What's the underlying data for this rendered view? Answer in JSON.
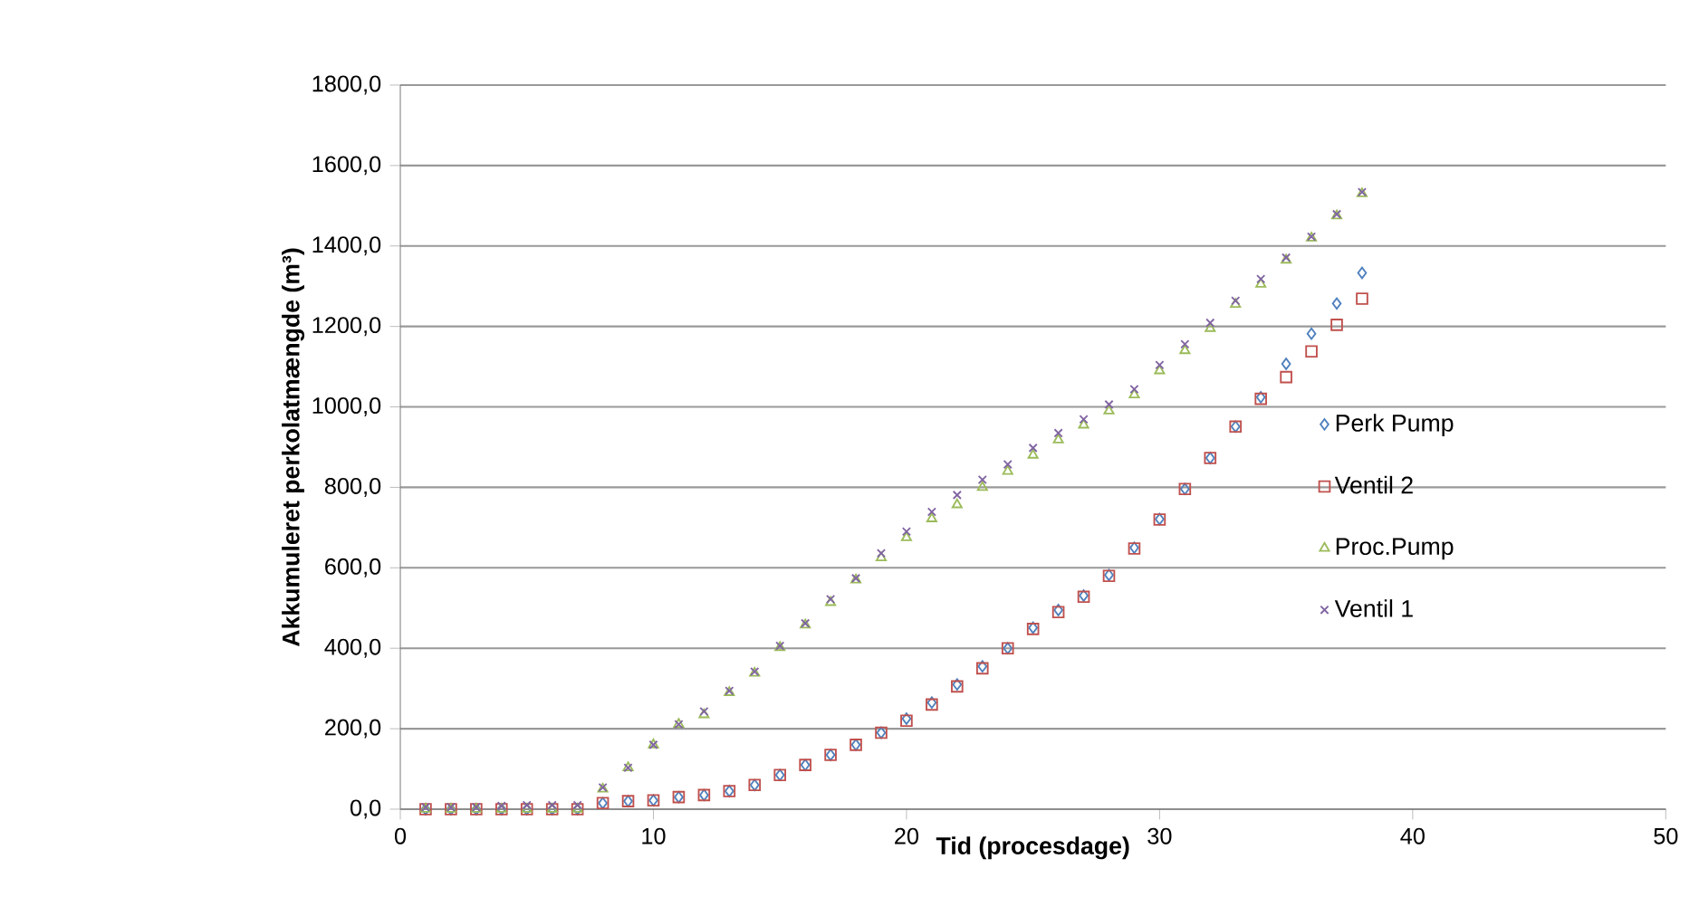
{
  "chart_data": {
    "type": "scatter",
    "xlabel": "Tid (procesdage)",
    "ylabel": "Akkumuleret perkolatmængde (m³)",
    "x": [
      1,
      2,
      3,
      4,
      5,
      6,
      7,
      8,
      9,
      10,
      11,
      12,
      13,
      14,
      15,
      16,
      17,
      18,
      19,
      20,
      21,
      22,
      23,
      24,
      25,
      26,
      27,
      28,
      29,
      30,
      31,
      32,
      33,
      34,
      35,
      36,
      37,
      38
    ],
    "xlim": [
      0,
      50
    ],
    "xticks": [
      0,
      10,
      20,
      30,
      40,
      50
    ],
    "ylim": [
      0,
      1800
    ],
    "yticks": [
      {
        "value": 0,
        "label": "0,0"
      },
      {
        "value": 200,
        "label": "200,0"
      },
      {
        "value": 400,
        "label": "400,0"
      },
      {
        "value": 600,
        "label": "600,0"
      },
      {
        "value": 800,
        "label": "800,0"
      },
      {
        "value": 1000,
        "label": "1000,0"
      },
      {
        "value": 1200,
        "label": "1200,0"
      },
      {
        "value": 1400,
        "label": "1400,0"
      },
      {
        "value": 1600,
        "label": "1600,0"
      },
      {
        "value": 1800,
        "label": "1800,0"
      }
    ],
    "grid": "y",
    "legend": "right",
    "series": [
      {
        "name": "Perk Pump",
        "color": "#4f81bd",
        "marker": "diamond",
        "values": [
          0,
          0,
          0,
          0,
          0,
          0,
          0,
          15,
          20,
          22,
          30,
          35,
          45,
          60,
          85,
          110,
          135,
          160,
          190,
          225,
          265,
          310,
          355,
          400,
          451,
          495,
          531,
          582,
          650,
          721,
          796,
          873,
          951,
          1024,
          1107,
          1182,
          1257,
          1333
        ]
      },
      {
        "name": "Ventil 2",
        "color": "#c0504d",
        "marker": "square",
        "values": [
          0,
          0,
          0,
          0,
          0,
          0,
          0,
          15,
          20,
          22,
          30,
          35,
          45,
          60,
          85,
          110,
          135,
          160,
          190,
          220,
          260,
          305,
          350,
          400,
          448,
          490,
          528,
          580,
          648,
          720,
          796,
          873,
          951,
          1020,
          1074,
          1138,
          1204,
          1269
        ]
      },
      {
        "name": "Proc.Pump",
        "color": "#9bbb59",
        "marker": "triangle",
        "values": [
          0,
          0,
          0,
          0,
          0,
          0,
          0,
          50,
          103,
          160,
          211,
          235,
          290,
          338,
          402,
          458,
          514,
          570,
          625,
          675,
          722,
          757,
          800,
          840,
          880,
          918,
          955,
          990,
          1030,
          1090,
          1140,
          1195,
          1255,
          1305,
          1365,
          1420,
          1475,
          1530
        ]
      },
      {
        "name": "Ventil 1",
        "color": "#8064a2",
        "marker": "cross",
        "values": [
          5,
          5,
          5,
          8,
          10,
          10,
          10,
          54,
          103,
          160,
          211,
          243,
          294,
          342,
          406,
          462,
          522,
          574,
          636,
          690,
          739,
          781,
          819,
          857,
          898,
          935,
          969,
          1006,
          1044,
          1104,
          1156,
          1209,
          1264,
          1318,
          1371,
          1423,
          1479,
          1534
        ]
      }
    ]
  }
}
